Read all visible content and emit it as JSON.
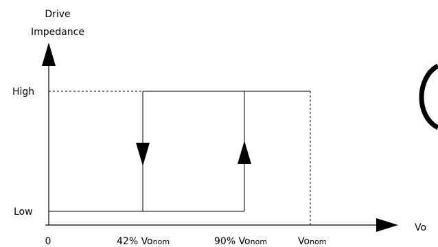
{
  "diagram": {
    "y_axis": {
      "title_line1": "Drive",
      "title_line2": "Impedance",
      "high_label": "High",
      "low_label": "Low"
    },
    "x_axis": {
      "label": "Vo",
      "tick_origin": "0",
      "tick_42": {
        "prefix": "42% Vo",
        "subscript": "nom"
      },
      "tick_90": {
        "prefix": "90% Vo",
        "subscript": "nom"
      },
      "tick_nom": {
        "prefix": "Vo",
        "subscript": "nom"
      }
    }
  }
}
